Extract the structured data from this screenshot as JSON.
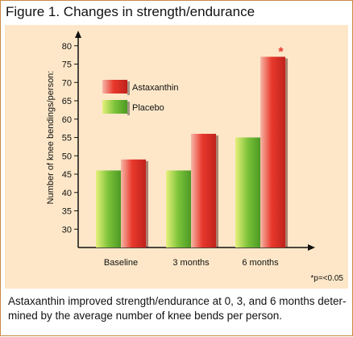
{
  "figure_title": "Figure 1. Changes in strength/endurance",
  "caption": "Astaxanthin improved strength/endurance at 0, 3, and 6 months deter-mined by the average number of knee bends per person.",
  "footnote": "*p=<0.05",
  "colors": {
    "panel_bg": "#fde7c8",
    "astaxanthin": "#e8392c",
    "placebo": "#7cc23a",
    "significance": "#e8392c"
  },
  "chart_data": {
    "type": "bar",
    "title": "",
    "xlabel": "",
    "ylabel": "Number of knee bendings/person:",
    "ylim": [
      25,
      85
    ],
    "yticks": [
      30,
      35,
      40,
      45,
      50,
      55,
      60,
      65,
      70,
      75,
      80
    ],
    "categories": [
      "Baseline",
      "3 months",
      "6 months"
    ],
    "series": [
      {
        "name": "Placebo",
        "values": [
          46,
          46,
          55
        ],
        "color": "#7cc23a"
      },
      {
        "name": "Astaxanthin",
        "values": [
          49,
          56,
          77
        ],
        "color": "#e8392c"
      }
    ],
    "significance": [
      {
        "category": "6 months",
        "series": "Astaxanthin",
        "marker": "*"
      }
    ],
    "legend": {
      "placement": "top-left",
      "order": [
        "Astaxanthin",
        "Placebo"
      ]
    },
    "grid": false
  }
}
